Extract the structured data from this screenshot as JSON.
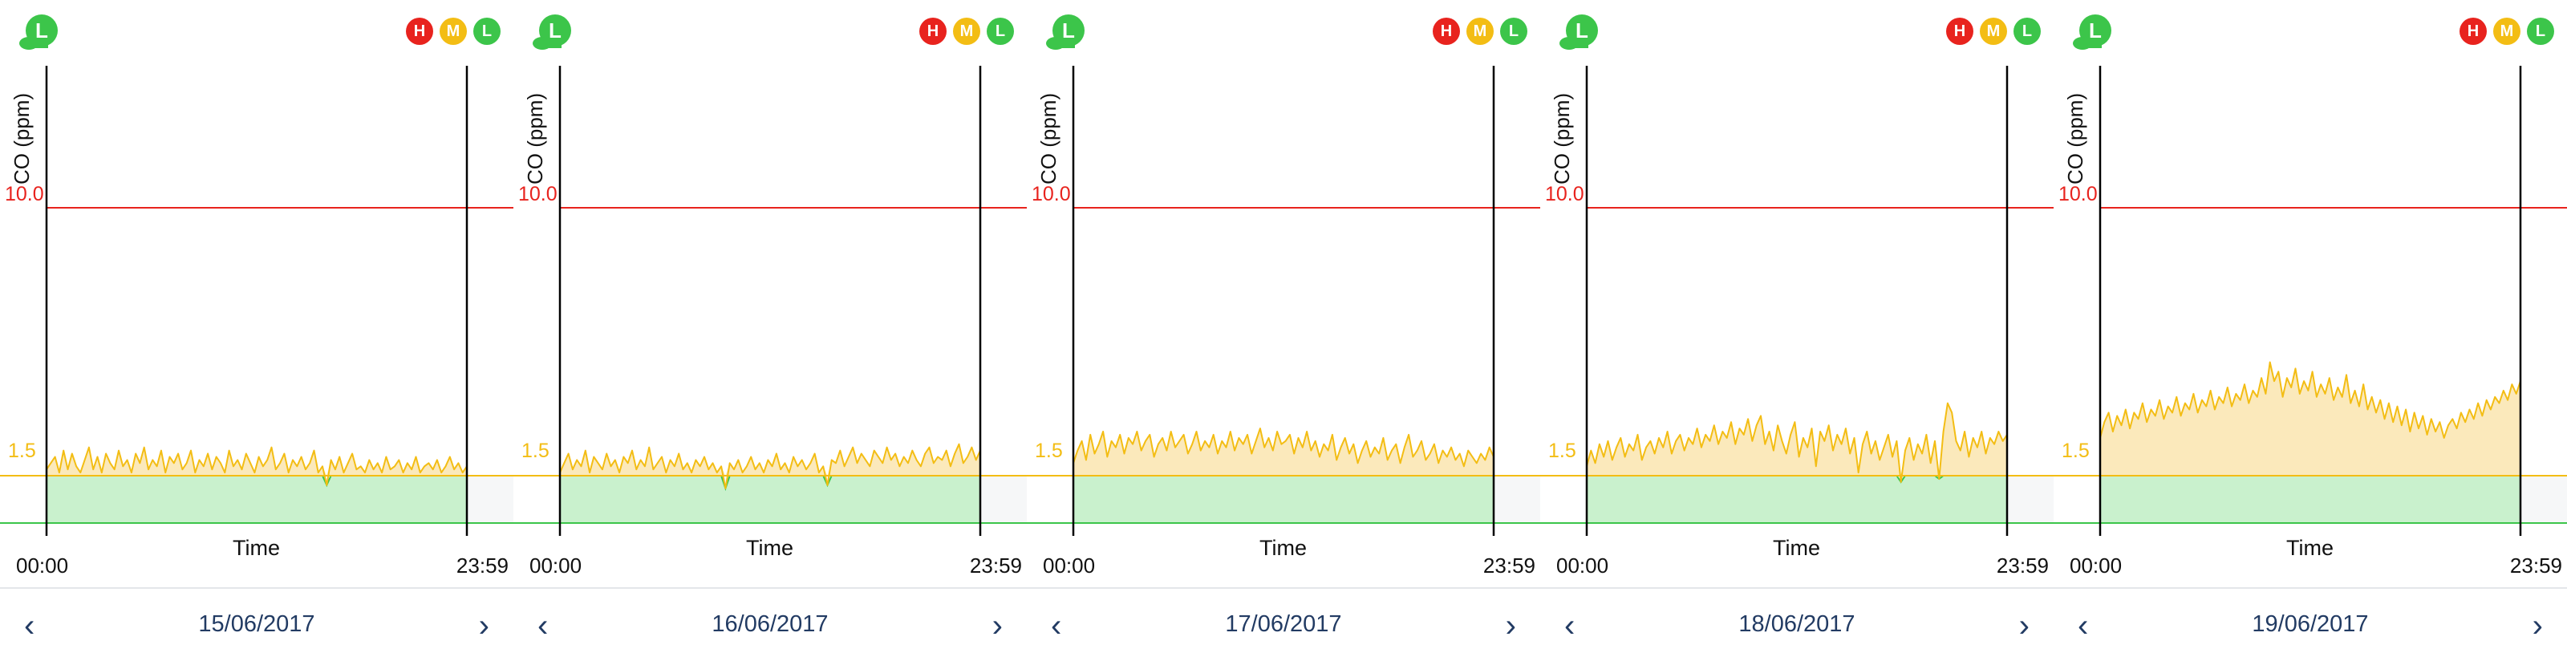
{
  "axis": {
    "ylabel": "CO (ppm)",
    "xlabel": "Time",
    "x_start": "00:00",
    "x_end": "23:59"
  },
  "thresholds": {
    "high_label": "10.0",
    "low_label": "1.5",
    "high_value": 10.0,
    "low_value": 1.5
  },
  "badges": {
    "current_level": "L",
    "h": "H",
    "m": "M",
    "l": "L"
  },
  "colors": {
    "high": "#e8231e",
    "medium": "#f3bd14",
    "low": "#3cc54a",
    "nav": "#223b63"
  },
  "nav": {
    "prev": "‹",
    "next": "›"
  },
  "chart_data": [
    {
      "type": "area",
      "date": "15/06/2017",
      "ylabel": "CO (ppm)",
      "xlabel": "Time",
      "x_range": [
        "00:00",
        "23:59"
      ],
      "ylim": [
        0,
        11.5
      ],
      "thresholds": [
        1.5,
        10.0
      ],
      "values": [
        1.7,
        1.9,
        2.1,
        1.6,
        2.3,
        1.7,
        2.2,
        1.8,
        1.6,
        2.0,
        2.4,
        1.7,
        2.1,
        1.6,
        2.2,
        1.9,
        1.7,
        2.3,
        1.8,
        2.0,
        1.6,
        2.2,
        1.9,
        2.4,
        1.7,
        2.0,
        1.8,
        2.3,
        1.6,
        2.1,
        1.9,
        2.2,
        1.7,
        1.9,
        2.3,
        1.6,
        2.0,
        1.8,
        2.2,
        1.7,
        2.1,
        1.9,
        1.6,
        2.3,
        1.8,
        2.0,
        1.7,
        2.2,
        1.9,
        1.6,
        2.1,
        1.8,
        2.0,
        2.4,
        1.7,
        1.9,
        2.2,
        1.6,
        2.0,
        1.8,
        2.1,
        1.7,
        1.9,
        2.3,
        1.6,
        1.8,
        1.2,
        2.0,
        1.7,
        2.1,
        1.6,
        1.9,
        2.2,
        1.7,
        1.8,
        1.6,
        2.0,
        1.7,
        1.9,
        1.6,
        2.1,
        1.7,
        1.8,
        2.0,
        1.6,
        1.9,
        1.7,
        2.1,
        1.6,
        1.8,
        1.9,
        1.7,
        2.0,
        1.6,
        1.8,
        2.1,
        1.7,
        1.9,
        1.6,
        1.8
      ]
    },
    {
      "type": "area",
      "date": "16/06/2017",
      "ylabel": "CO (ppm)",
      "xlabel": "Time",
      "x_range": [
        "00:00",
        "23:59"
      ],
      "ylim": [
        0,
        11.5
      ],
      "thresholds": [
        1.5,
        10.0
      ],
      "values": [
        1.6,
        1.9,
        2.2,
        1.7,
        2.0,
        1.8,
        2.3,
        1.6,
        2.1,
        1.9,
        1.7,
        2.2,
        1.8,
        2.0,
        1.6,
        2.1,
        1.9,
        2.3,
        1.7,
        2.0,
        1.8,
        2.4,
        1.7,
        1.9,
        2.1,
        1.6,
        2.0,
        1.8,
        2.2,
        1.7,
        1.9,
        1.6,
        2.0,
        1.8,
        2.1,
        1.7,
        1.9,
        1.6,
        1.8,
        1.1,
        1.9,
        1.7,
        2.0,
        1.6,
        1.8,
        2.1,
        1.7,
        1.9,
        1.6,
        2.0,
        1.8,
        2.2,
        1.7,
        1.9,
        1.6,
        2.1,
        1.8,
        2.0,
        1.7,
        1.9,
        2.2,
        1.6,
        1.8,
        1.2,
        2.0,
        1.9,
        2.3,
        1.8,
        2.1,
        2.4,
        1.9,
        2.2,
        2.0,
        1.8,
        2.3,
        2.1,
        1.9,
        2.4,
        2.0,
        2.2,
        1.8,
        2.1,
        1.9,
        2.3,
        2.0,
        1.8,
        2.2,
        2.4,
        1.9,
        2.1,
        2.0,
        2.3,
        1.8,
        2.2,
        2.5,
        1.9,
        2.1,
        2.4,
        2.0,
        2.3
      ]
    },
    {
      "type": "area",
      "date": "17/06/2017",
      "ylabel": "CO (ppm)",
      "xlabel": "Time",
      "x_range": [
        "00:00",
        "23:59"
      ],
      "ylim": [
        0,
        11.5
      ],
      "thresholds": [
        1.5,
        10.0
      ],
      "values": [
        1.9,
        2.3,
        2.6,
        2.0,
        2.8,
        2.2,
        2.5,
        2.9,
        2.1,
        2.6,
        2.4,
        2.8,
        2.2,
        2.7,
        2.5,
        2.9,
        2.3,
        2.6,
        2.8,
        2.1,
        2.5,
        2.7,
        2.3,
        2.9,
        2.4,
        2.6,
        2.8,
        2.2,
        2.5,
        2.9,
        2.3,
        2.6,
        2.4,
        2.8,
        2.2,
        2.6,
        2.4,
        2.9,
        2.3,
        2.7,
        2.5,
        2.8,
        2.2,
        2.6,
        3.0,
        2.4,
        2.7,
        2.3,
        2.9,
        2.5,
        2.6,
        2.8,
        2.2,
        2.7,
        2.4,
        2.9,
        2.3,
        2.6,
        2.1,
        2.5,
        2.3,
        2.8,
        2.0,
        2.4,
        2.7,
        2.2,
        2.5,
        1.9,
        2.3,
        2.6,
        2.1,
        2.4,
        2.2,
        2.7,
        2.0,
        2.3,
        2.5,
        1.9,
        2.4,
        2.8,
        2.1,
        2.3,
        2.6,
        2.0,
        2.2,
        2.5,
        1.9,
        2.3,
        2.1,
        2.4,
        2.0,
        2.2,
        1.8,
        2.3,
        2.1,
        1.9,
        2.2,
        2.0,
        2.4,
        2.1
      ]
    },
    {
      "type": "area",
      "date": "18/06/2017",
      "ylabel": "CO (ppm)",
      "xlabel": "Time",
      "x_range": [
        "00:00",
        "23:59"
      ],
      "ylim": [
        0,
        11.5
      ],
      "thresholds": [
        1.5,
        10.0
      ],
      "values": [
        1.8,
        2.3,
        1.9,
        2.5,
        2.1,
        2.6,
        2.0,
        2.4,
        2.7,
        2.1,
        2.5,
        2.3,
        2.8,
        2.0,
        2.4,
        2.6,
        2.2,
        2.7,
        2.4,
        2.9,
        2.2,
        2.6,
        2.8,
        2.3,
        2.7,
        2.5,
        3.0,
        2.4,
        2.8,
        2.6,
        3.1,
        2.5,
        2.9,
        2.7,
        3.2,
        2.5,
        3.0,
        2.8,
        3.3,
        2.6,
        3.1,
        3.4,
        2.5,
        2.9,
        2.3,
        3.1,
        2.6,
        2.2,
        2.8,
        3.2,
        2.1,
        2.7,
        2.4,
        3.0,
        1.8,
        2.9,
        2.6,
        3.1,
        2.3,
        2.8,
        2.5,
        3.0,
        2.2,
        2.7,
        1.6,
        2.5,
        2.9,
        2.2,
        2.6,
        2.0,
        2.4,
        2.8,
        2.1,
        2.6,
        1.3,
        2.3,
        2.7,
        2.0,
        2.5,
        2.2,
        2.8,
        1.9,
        2.6,
        1.4,
        2.9,
        3.8,
        3.5,
        2.6,
        2.3,
        2.9,
        2.1,
        2.7,
        2.4,
        2.9,
        2.2,
        2.7,
        2.5,
        2.9,
        2.6,
        2.8
      ]
    },
    {
      "type": "area",
      "date": "19/06/2017",
      "ylabel": "CO (ppm)",
      "xlabel": "Time",
      "x_range": [
        "00:00",
        "23:59"
      ],
      "ylim": [
        0,
        11.5
      ],
      "thresholds": [
        1.5,
        10.0
      ],
      "values": [
        2.7,
        3.2,
        3.5,
        2.9,
        3.4,
        3.1,
        3.6,
        3.0,
        3.5,
        3.3,
        3.8,
        3.2,
        3.6,
        3.4,
        3.9,
        3.3,
        3.7,
        3.5,
        4.0,
        3.4,
        3.8,
        3.6,
        4.1,
        3.5,
        3.9,
        3.7,
        4.2,
        3.6,
        4.0,
        3.8,
        4.3,
        3.7,
        4.1,
        3.9,
        4.4,
        3.8,
        4.2,
        4.0,
        4.6,
        4.1,
        5.1,
        4.5,
        4.8,
        4.0,
        4.6,
        4.3,
        4.9,
        4.1,
        4.5,
        4.2,
        4.8,
        4.0,
        4.4,
        4.1,
        4.6,
        3.9,
        4.3,
        4.0,
        4.7,
        3.8,
        4.2,
        3.7,
        4.4,
        3.6,
        4.0,
        3.5,
        3.9,
        3.3,
        3.8,
        3.2,
        3.7,
        3.1,
        3.6,
        2.9,
        3.5,
        3.0,
        3.4,
        2.8,
        3.3,
        2.9,
        3.2,
        2.7,
        3.1,
        3.3,
        3.0,
        3.5,
        3.2,
        3.6,
        3.3,
        3.8,
        3.4,
        3.9,
        3.6,
        4.0,
        3.8,
        4.2,
        3.9,
        4.4,
        4.1,
        4.5
      ]
    }
  ]
}
